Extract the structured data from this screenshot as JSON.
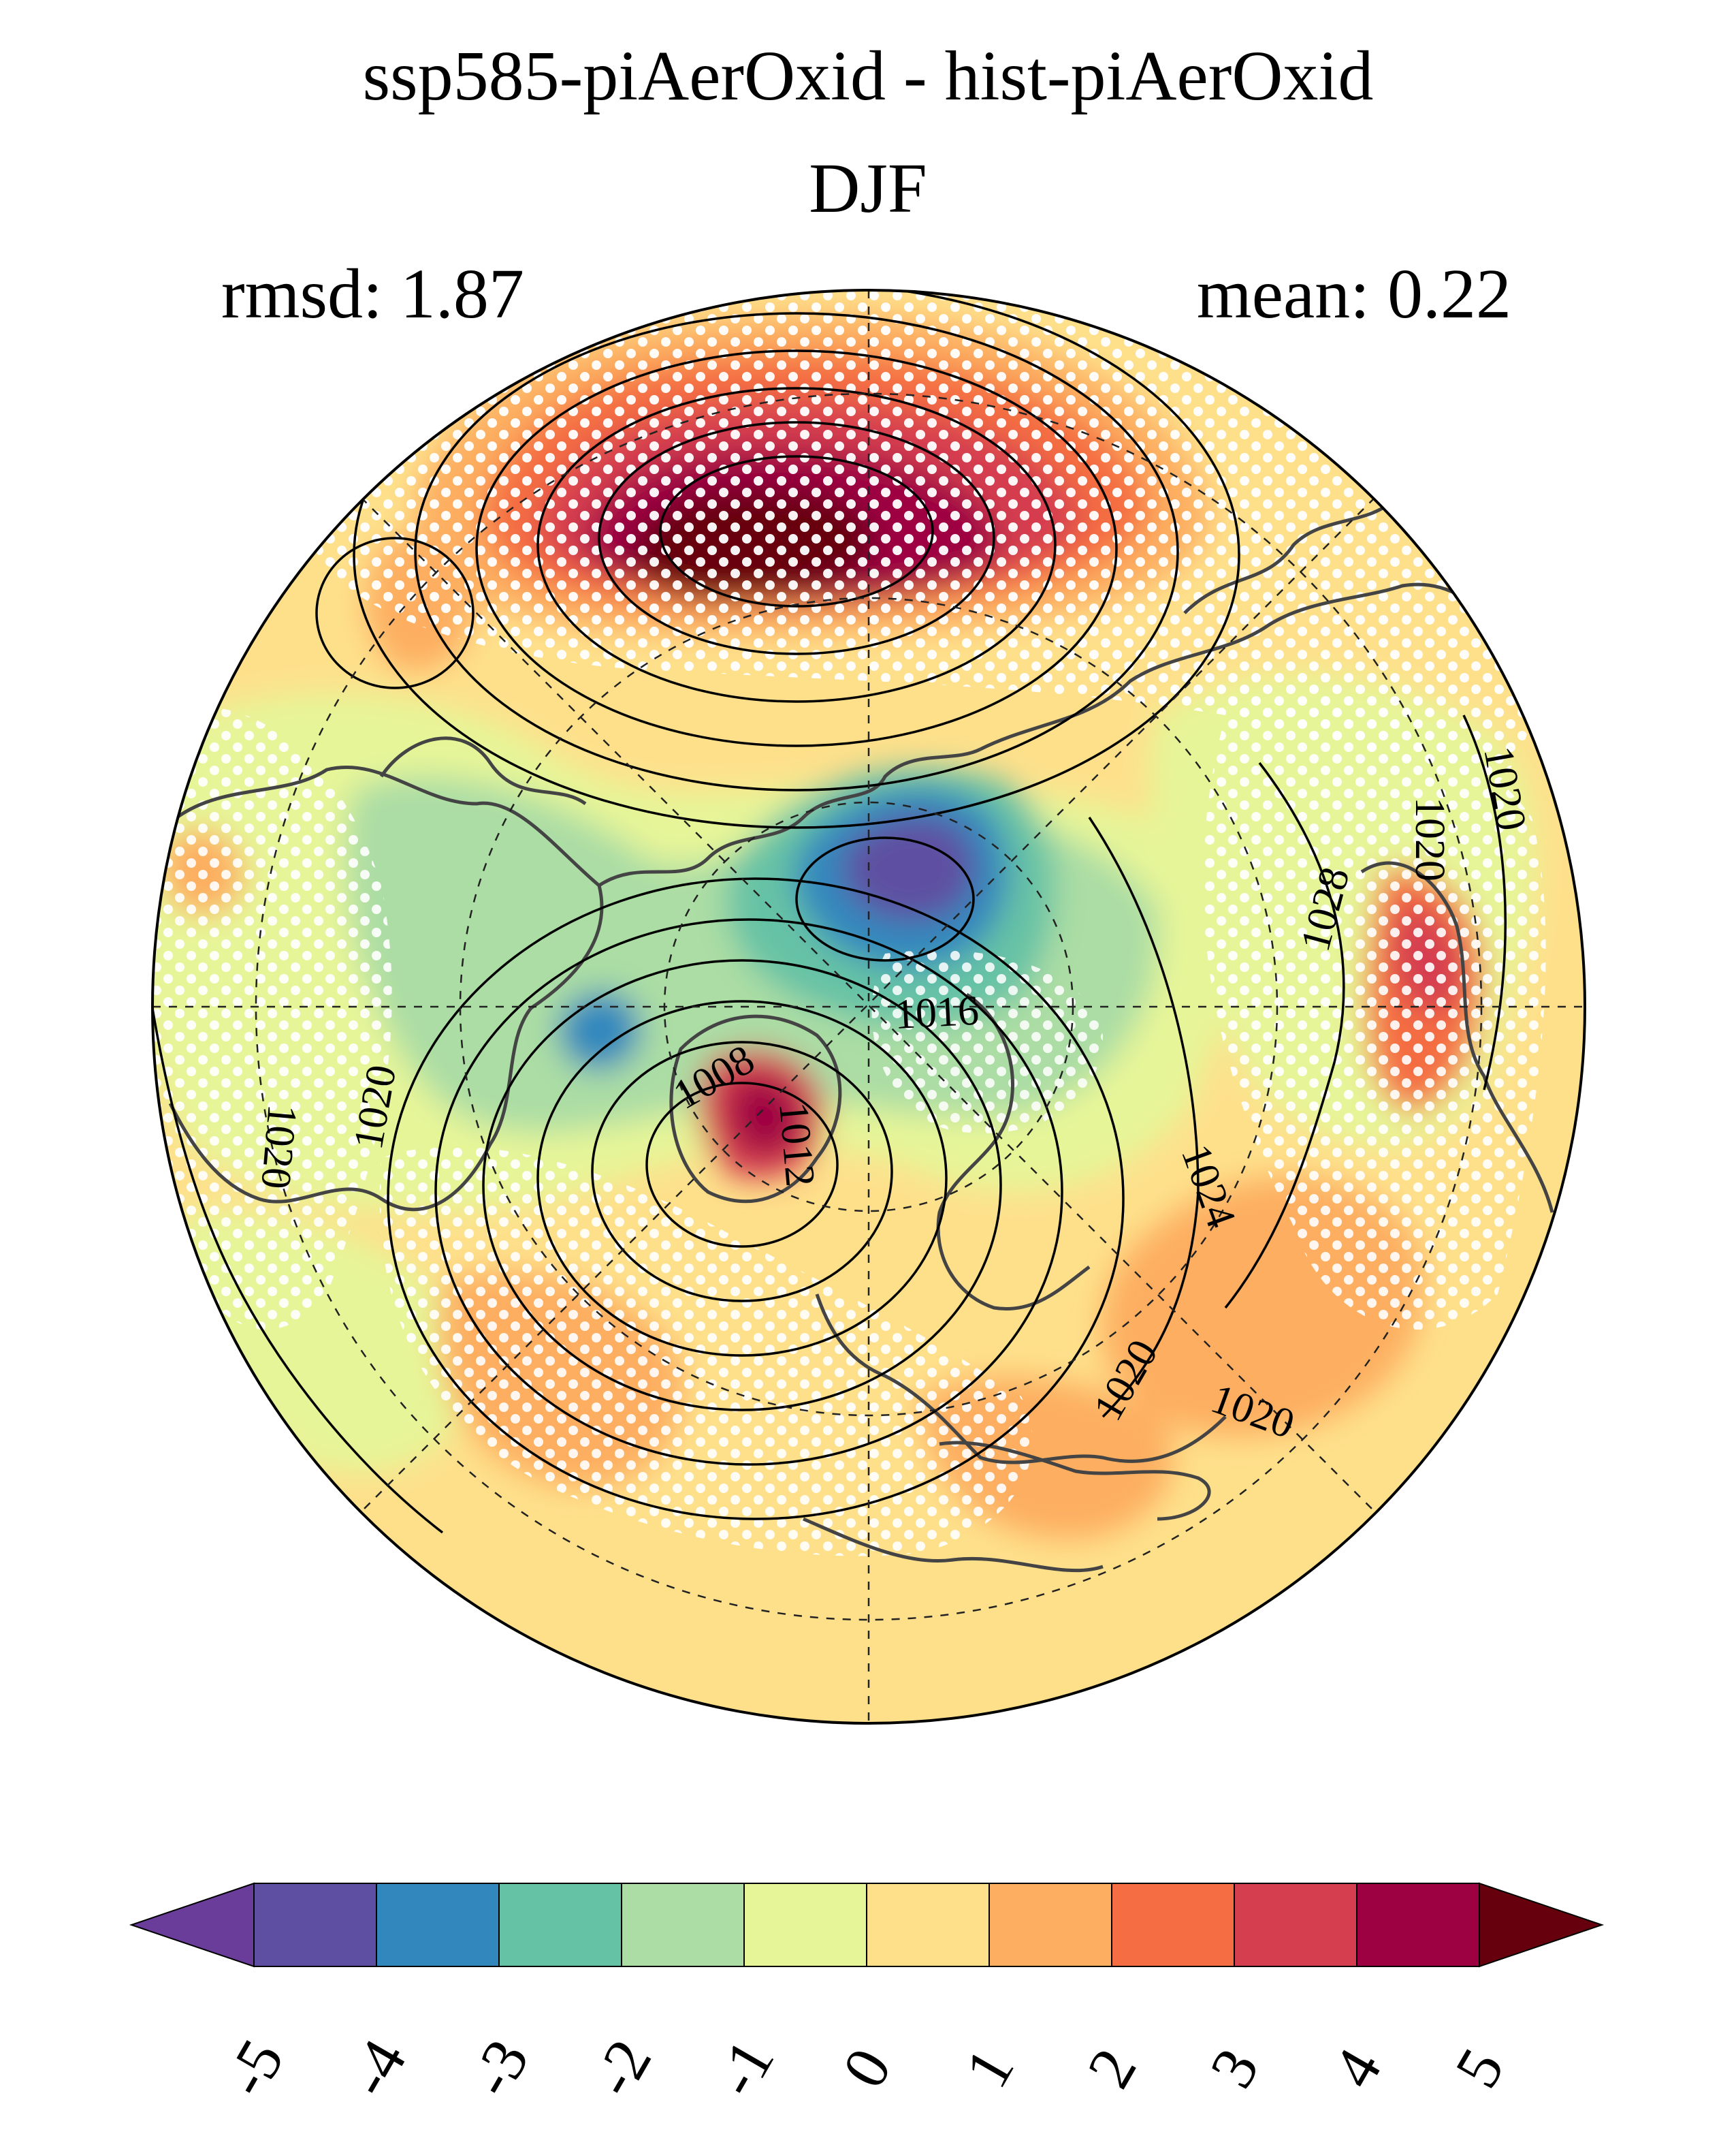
{
  "title": "ssp585-piAerOxid - hist-piAerOxid",
  "season": "DJF",
  "stats": {
    "rmsd_label": "rmsd: 1.87",
    "mean_label": "mean: 0.22"
  },
  "contour_labels": [
    "1020",
    "1020",
    "1028",
    "1016",
    "1008",
    "1012",
    "1020",
    "1020",
    "1024",
    "1020",
    "1020"
  ],
  "colorbar": {
    "ticks": [
      "-5",
      "-4",
      "-3",
      "-2",
      "-1",
      "0",
      "1",
      "2",
      "3",
      "4",
      "5"
    ],
    "colors": [
      "#5e4fa2",
      "#3288bd",
      "#66c2a5",
      "#abdda4",
      "#e6f598",
      "#fee08b",
      "#fdae61",
      "#f46d43",
      "#d53e4f",
      "#9e0142"
    ],
    "under_color": "#6a3d9a",
    "over_color": "#67000d"
  },
  "chart_data": {
    "type": "heatmap",
    "projection": "north-polar-stereographic",
    "title": "ssp585-piAerOxid - hist-piAerOxid",
    "subtitle": "DJF",
    "rmsd": 1.87,
    "mean": 0.22,
    "colorbar_range": [
      -5,
      5
    ],
    "colorbar_step": 1,
    "contour_levels_labeled": [
      1008,
      1012,
      1016,
      1020,
      1024,
      1028
    ]
  }
}
